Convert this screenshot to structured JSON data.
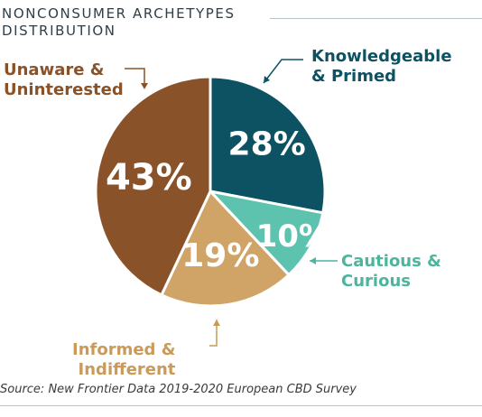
{
  "title": [
    "NONCONSUMER ARCHETYPES",
    "DISTRIBUTION"
  ],
  "source": "Source: New Frontier Data 2019-2020 European CBD Survey",
  "chart_data": {
    "type": "pie",
    "title": "NONCONSUMER ARCHETYPES DISTRIBUTION",
    "start": "12 o'clock, clockwise",
    "slices": [
      {
        "label": "Knowledgeable & Primed",
        "label_lines": [
          "Knowledgeable",
          "& Primed"
        ],
        "value": 28,
        "value_label": "28%",
        "color": "#0d5263",
        "label_color": "#0d5263"
      },
      {
        "label": "Cautious & Curious",
        "label_lines": [
          "Cautious &",
          "Curious"
        ],
        "value": 10,
        "value_label": "10%",
        "color": "#5ec3ae",
        "label_color": "#4db49e"
      },
      {
        "label": "Informed & Indifferent",
        "label_lines": [
          "Informed &",
          "Indifferent"
        ],
        "value": 19,
        "value_label": "19%",
        "color": "#d0a467",
        "label_color": "#c99a5a"
      },
      {
        "label": "Unaware & Uninterested",
        "label_lines": [
          "Unaware &",
          "Uninterested"
        ],
        "value": 43,
        "value_label": "43%",
        "color": "#8a5229",
        "label_color": "#8a5229"
      }
    ]
  }
}
